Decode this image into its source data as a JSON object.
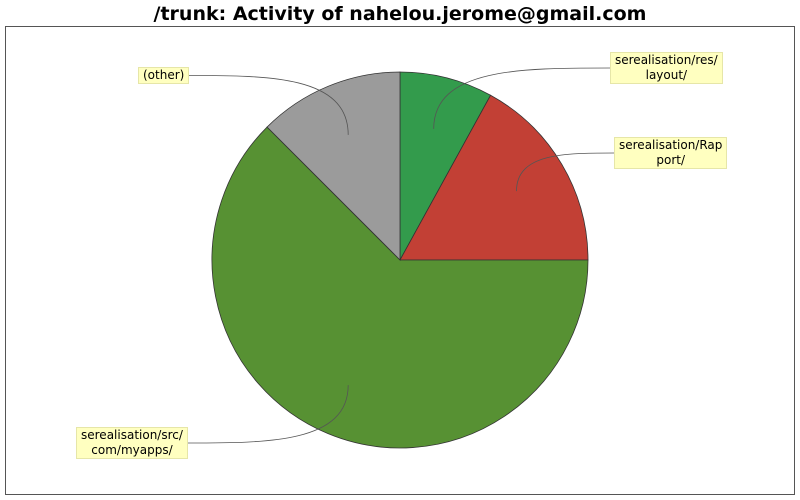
{
  "chart_data": {
    "type": "pie",
    "title": "/trunk: Activity of nahelou.jerome@gmail.com",
    "slices": [
      {
        "label_lines": [
          "serealisation/res/",
          "layout/"
        ],
        "value": 8.0,
        "color": "#339b4c"
      },
      {
        "label_lines": [
          "serealisation/Rap",
          "port/"
        ],
        "value": 17.0,
        "color": "#c24035"
      },
      {
        "label_lines": [
          "serealisation/src/",
          "com/myapps/"
        ],
        "value": 62.5,
        "color": "#579133"
      },
      {
        "label_lines": [
          "(other)"
        ],
        "value": 12.5,
        "color": "#9b9b9b"
      }
    ]
  }
}
